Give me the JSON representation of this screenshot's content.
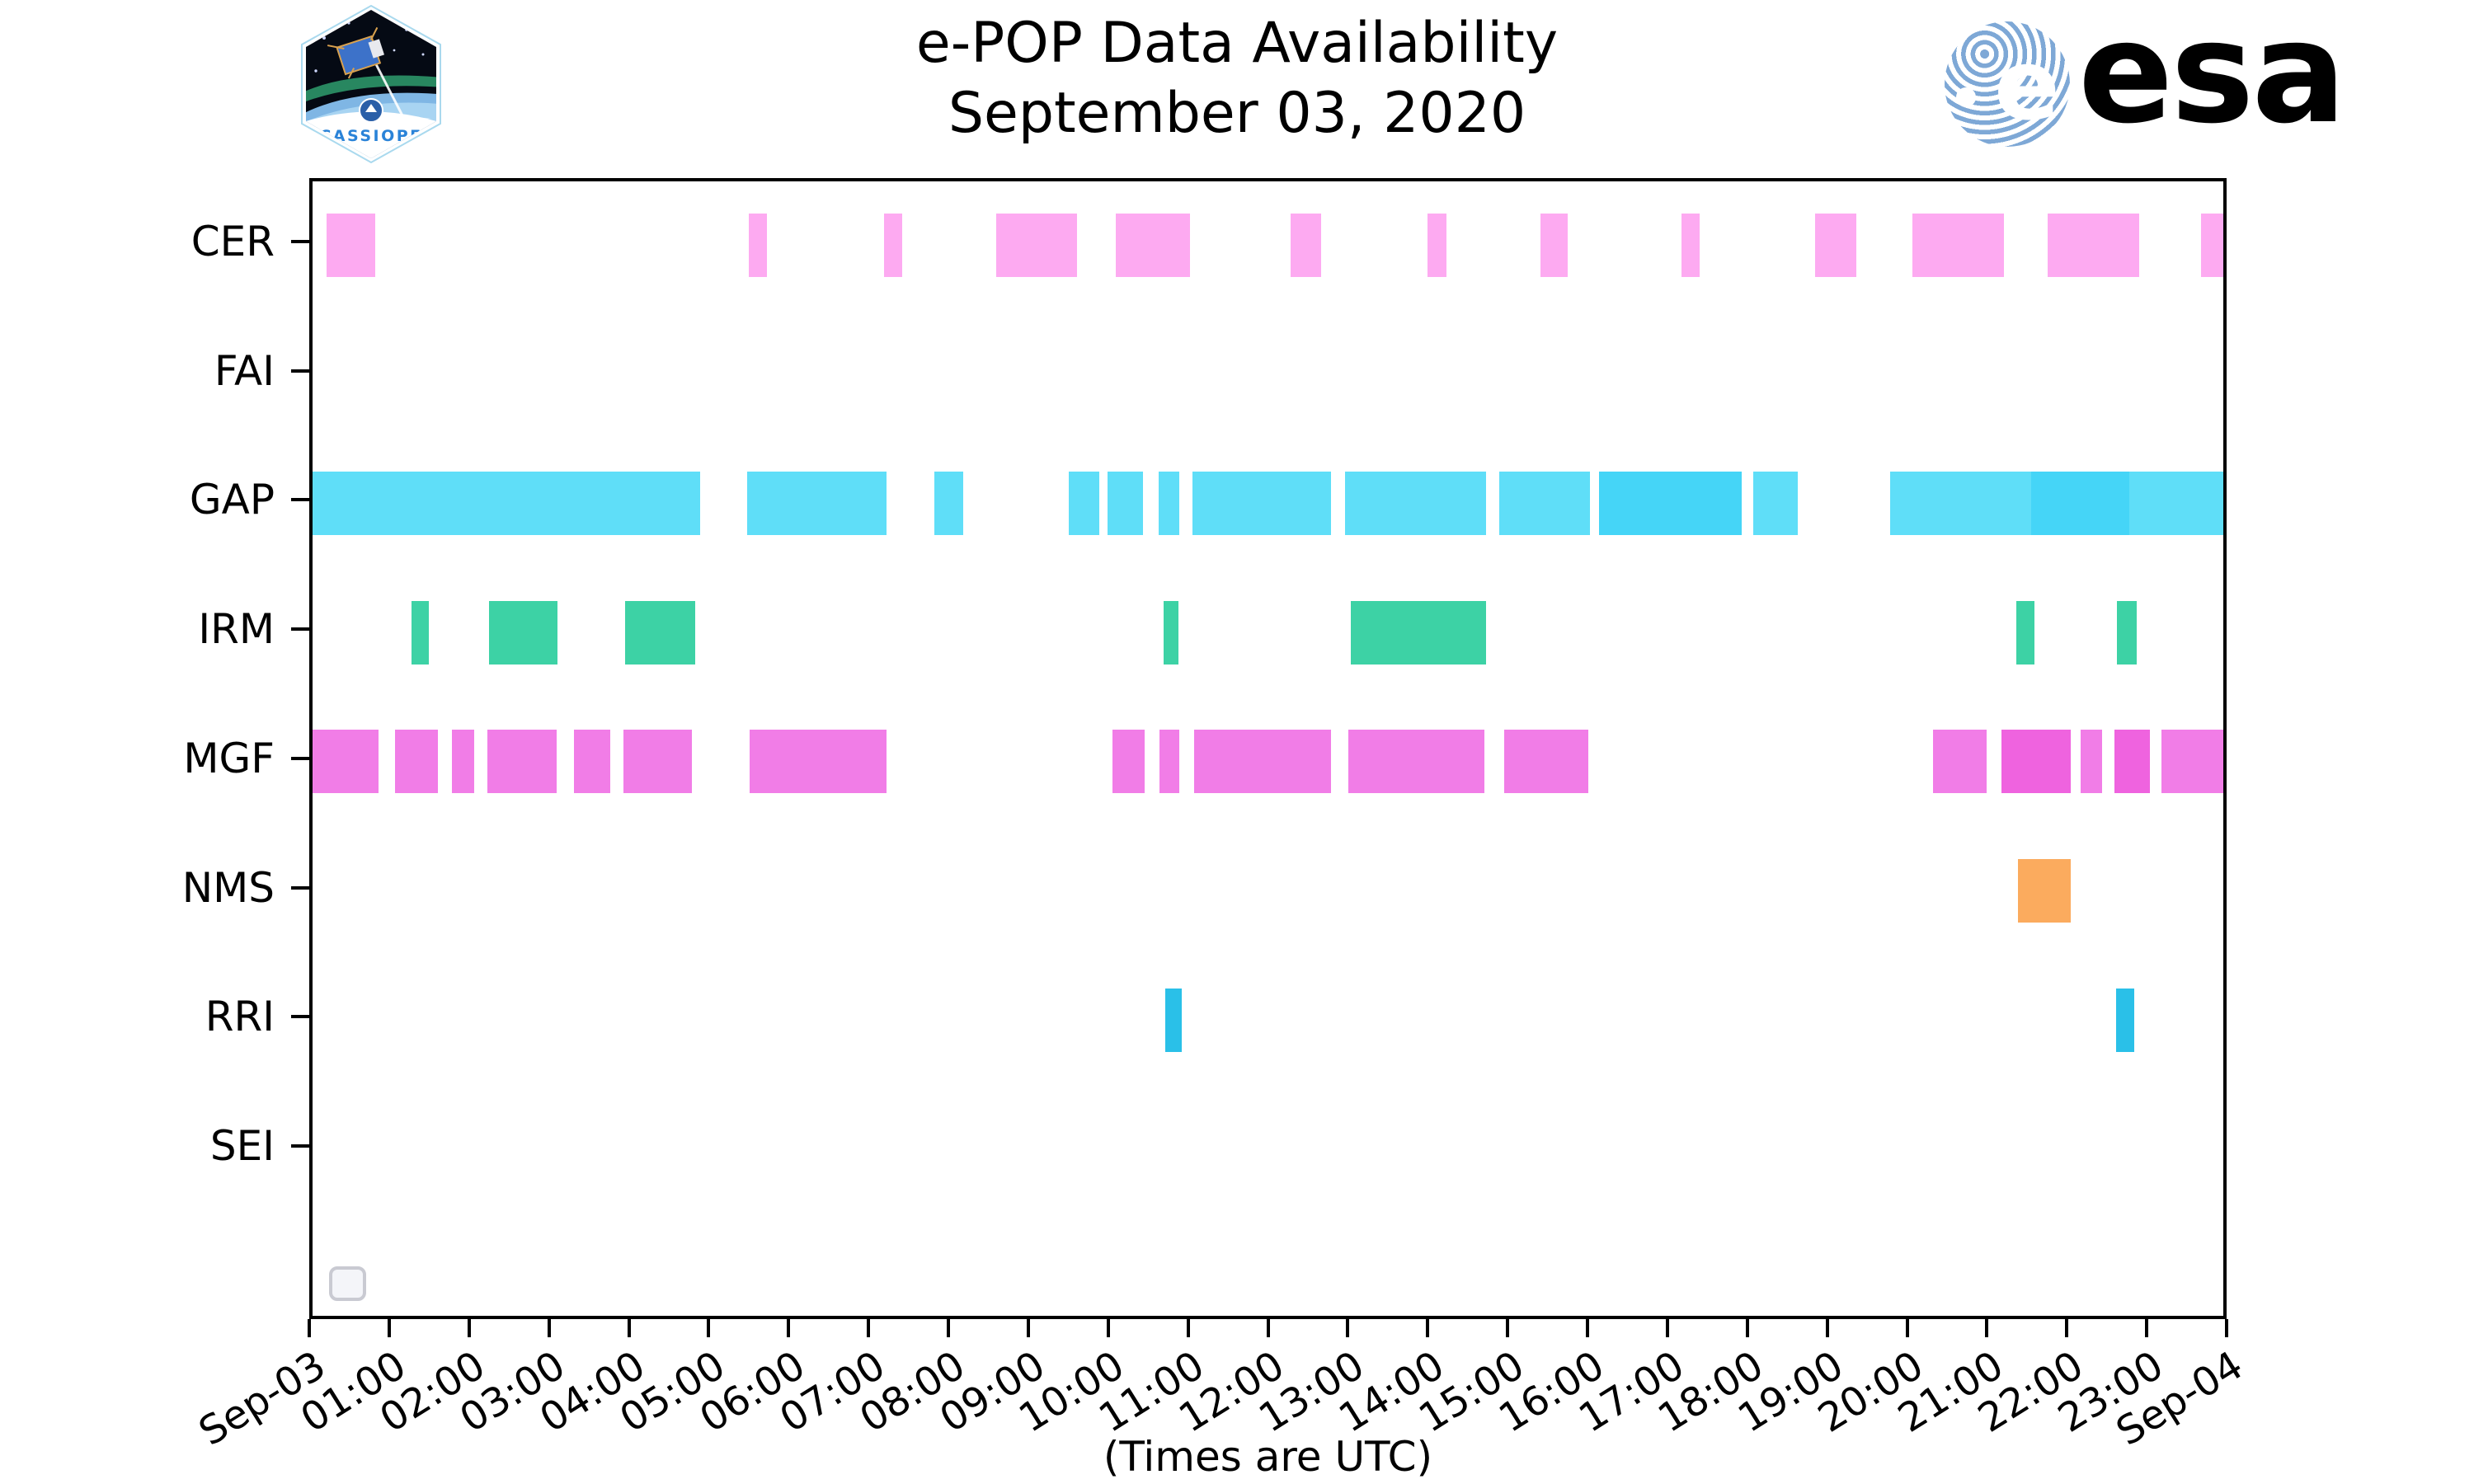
{
  "header": {
    "title_line1": "e-POP Data Availability",
    "title_line2": "September 03, 2020",
    "cassiope_patch_label": "CASSIOPE",
    "esa_logo_text": "esa",
    "esa_logo_letter": "e"
  },
  "footer_caption": "(Times are UTC)",
  "colors": {
    "cer": "#fdaaf1",
    "gap_light": "#5fdef8",
    "gap_dark": "#45d5f7",
    "irm": "#3dd2a5",
    "mgf_light": "#f17de7",
    "mgf_dark": "#ef63df",
    "nms": "#fbab5e",
    "rri": "#2ac0e8",
    "esa_blue": "#1f2f8a",
    "cassiope_text_blue": "#2a83d8"
  },
  "chart_data": {
    "type": "bar",
    "subtype": "availability-timeline",
    "title": "e-POP Data Availability",
    "subtitle": "September 03, 2020",
    "xlabel": "(Times are UTC)",
    "x_range_hours": [
      0,
      24
    ],
    "grid": false,
    "x_axis": {
      "ticks": [
        {
          "hour": 0,
          "label": "Sep-03"
        },
        {
          "hour": 1,
          "label": "01:00"
        },
        {
          "hour": 2,
          "label": "02:00"
        },
        {
          "hour": 3,
          "label": "03:00"
        },
        {
          "hour": 4,
          "label": "04:00"
        },
        {
          "hour": 5,
          "label": "05:00"
        },
        {
          "hour": 6,
          "label": "06:00"
        },
        {
          "hour": 7,
          "label": "07:00"
        },
        {
          "hour": 8,
          "label": "08:00"
        },
        {
          "hour": 9,
          "label": "09:00"
        },
        {
          "hour": 10,
          "label": "10:00"
        },
        {
          "hour": 11,
          "label": "11:00"
        },
        {
          "hour": 12,
          "label": "12:00"
        },
        {
          "hour": 13,
          "label": "13:00"
        },
        {
          "hour": 14,
          "label": "14:00"
        },
        {
          "hour": 15,
          "label": "15:00"
        },
        {
          "hour": 16,
          "label": "16:00"
        },
        {
          "hour": 17,
          "label": "17:00"
        },
        {
          "hour": 18,
          "label": "18:00"
        },
        {
          "hour": 19,
          "label": "19:00"
        },
        {
          "hour": 20,
          "label": "20:00"
        },
        {
          "hour": 21,
          "label": "21:00"
        },
        {
          "hour": 22,
          "label": "22:00"
        },
        {
          "hour": 23,
          "label": "23:00"
        },
        {
          "hour": 24,
          "label": "Sep-04"
        }
      ]
    },
    "rows": [
      {
        "label": "CER",
        "bars": [
          {
            "start": 0.18,
            "end": 0.79,
            "color": "#fdaaf1"
          },
          {
            "start": 5.48,
            "end": 5.71,
            "color": "#fdaaf1"
          },
          {
            "start": 7.18,
            "end": 7.41,
            "color": "#fdaaf1"
          },
          {
            "start": 8.59,
            "end": 9.6,
            "color": "#fdaaf1"
          },
          {
            "start": 10.09,
            "end": 11.02,
            "color": "#fdaaf1"
          },
          {
            "start": 12.28,
            "end": 12.67,
            "color": "#fdaaf1"
          },
          {
            "start": 14.0,
            "end": 14.24,
            "color": "#fdaaf1"
          },
          {
            "start": 15.42,
            "end": 15.77,
            "color": "#fdaaf1"
          },
          {
            "start": 17.19,
            "end": 17.42,
            "color": "#fdaaf1"
          },
          {
            "start": 18.87,
            "end": 19.39,
            "color": "#fdaaf1"
          },
          {
            "start": 20.09,
            "end": 21.24,
            "color": "#fdaaf1"
          },
          {
            "start": 21.79,
            "end": 22.94,
            "color": "#fdaaf1"
          },
          {
            "start": 23.72,
            "end": 24.0,
            "color": "#fdaaf1"
          }
        ]
      },
      {
        "label": "FAI",
        "bars": []
      },
      {
        "label": "GAP",
        "bars": [
          {
            "start": 0.0,
            "end": 4.87,
            "color": "#5fdef8"
          },
          {
            "start": 5.46,
            "end": 7.21,
            "color": "#5fdef8"
          },
          {
            "start": 7.81,
            "end": 8.17,
            "color": "#5fdef8"
          },
          {
            "start": 9.5,
            "end": 9.88,
            "color": "#5fdef8"
          },
          {
            "start": 9.99,
            "end": 10.43,
            "color": "#5fdef8"
          },
          {
            "start": 10.63,
            "end": 10.89,
            "color": "#5fdef8"
          },
          {
            "start": 11.05,
            "end": 12.79,
            "color": "#5fdef8"
          },
          {
            "start": 12.97,
            "end": 14.74,
            "color": "#5fdef8"
          },
          {
            "start": 14.91,
            "end": 16.04,
            "color": "#5fdef8"
          },
          {
            "start": 16.16,
            "end": 17.95,
            "color": "#45d5f7"
          },
          {
            "start": 18.1,
            "end": 18.66,
            "color": "#5fdef8"
          },
          {
            "start": 19.82,
            "end": 21.59,
            "color": "#5fdef8"
          },
          {
            "start": 21.59,
            "end": 22.82,
            "color": "#45d5f7"
          },
          {
            "start": 22.82,
            "end": 24.0,
            "color": "#5fdef8"
          }
        ]
      },
      {
        "label": "IRM",
        "bars": [
          {
            "start": 1.24,
            "end": 1.46,
            "color": "#3dd2a5"
          },
          {
            "start": 2.22,
            "end": 3.08,
            "color": "#3dd2a5"
          },
          {
            "start": 3.93,
            "end": 4.81,
            "color": "#3dd2a5"
          },
          {
            "start": 10.69,
            "end": 10.88,
            "color": "#3dd2a5"
          },
          {
            "start": 13.04,
            "end": 14.74,
            "color": "#3dd2a5"
          },
          {
            "start": 21.4,
            "end": 21.63,
            "color": "#3dd2a5"
          },
          {
            "start": 22.66,
            "end": 22.91,
            "color": "#3dd2a5"
          }
        ]
      },
      {
        "label": "MGF",
        "bars": [
          {
            "start": 0.0,
            "end": 0.83,
            "color": "#f17de7"
          },
          {
            "start": 1.04,
            "end": 1.57,
            "color": "#f17de7"
          },
          {
            "start": 1.75,
            "end": 2.03,
            "color": "#f17de7"
          },
          {
            "start": 2.2,
            "end": 3.07,
            "color": "#f17de7"
          },
          {
            "start": 3.28,
            "end": 3.74,
            "color": "#f17de7"
          },
          {
            "start": 3.9,
            "end": 4.77,
            "color": "#f17de7"
          },
          {
            "start": 5.49,
            "end": 7.21,
            "color": "#f17de7"
          },
          {
            "start": 10.05,
            "end": 10.45,
            "color": "#f17de7"
          },
          {
            "start": 10.64,
            "end": 10.89,
            "color": "#f17de7"
          },
          {
            "start": 11.07,
            "end": 12.79,
            "color": "#f17de7"
          },
          {
            "start": 13.01,
            "end": 14.72,
            "color": "#f17de7"
          },
          {
            "start": 14.97,
            "end": 16.02,
            "color": "#f17de7"
          },
          {
            "start": 20.35,
            "end": 21.03,
            "color": "#f17de7"
          },
          {
            "start": 21.21,
            "end": 22.08,
            "color": "#ef63df"
          },
          {
            "start": 22.21,
            "end": 22.48,
            "color": "#f17de7"
          },
          {
            "start": 22.63,
            "end": 23.08,
            "color": "#ef63df"
          },
          {
            "start": 23.22,
            "end": 24.0,
            "color": "#f17de7"
          }
        ]
      },
      {
        "label": "NMS",
        "bars": [
          {
            "start": 21.42,
            "end": 22.08,
            "color": "#fbab5e"
          }
        ]
      },
      {
        "label": "RRI",
        "bars": [
          {
            "start": 10.71,
            "end": 10.92,
            "color": "#2ac0e8"
          },
          {
            "start": 22.65,
            "end": 22.88,
            "color": "#2ac0e8"
          }
        ]
      },
      {
        "label": "SEI",
        "bars": []
      }
    ]
  }
}
